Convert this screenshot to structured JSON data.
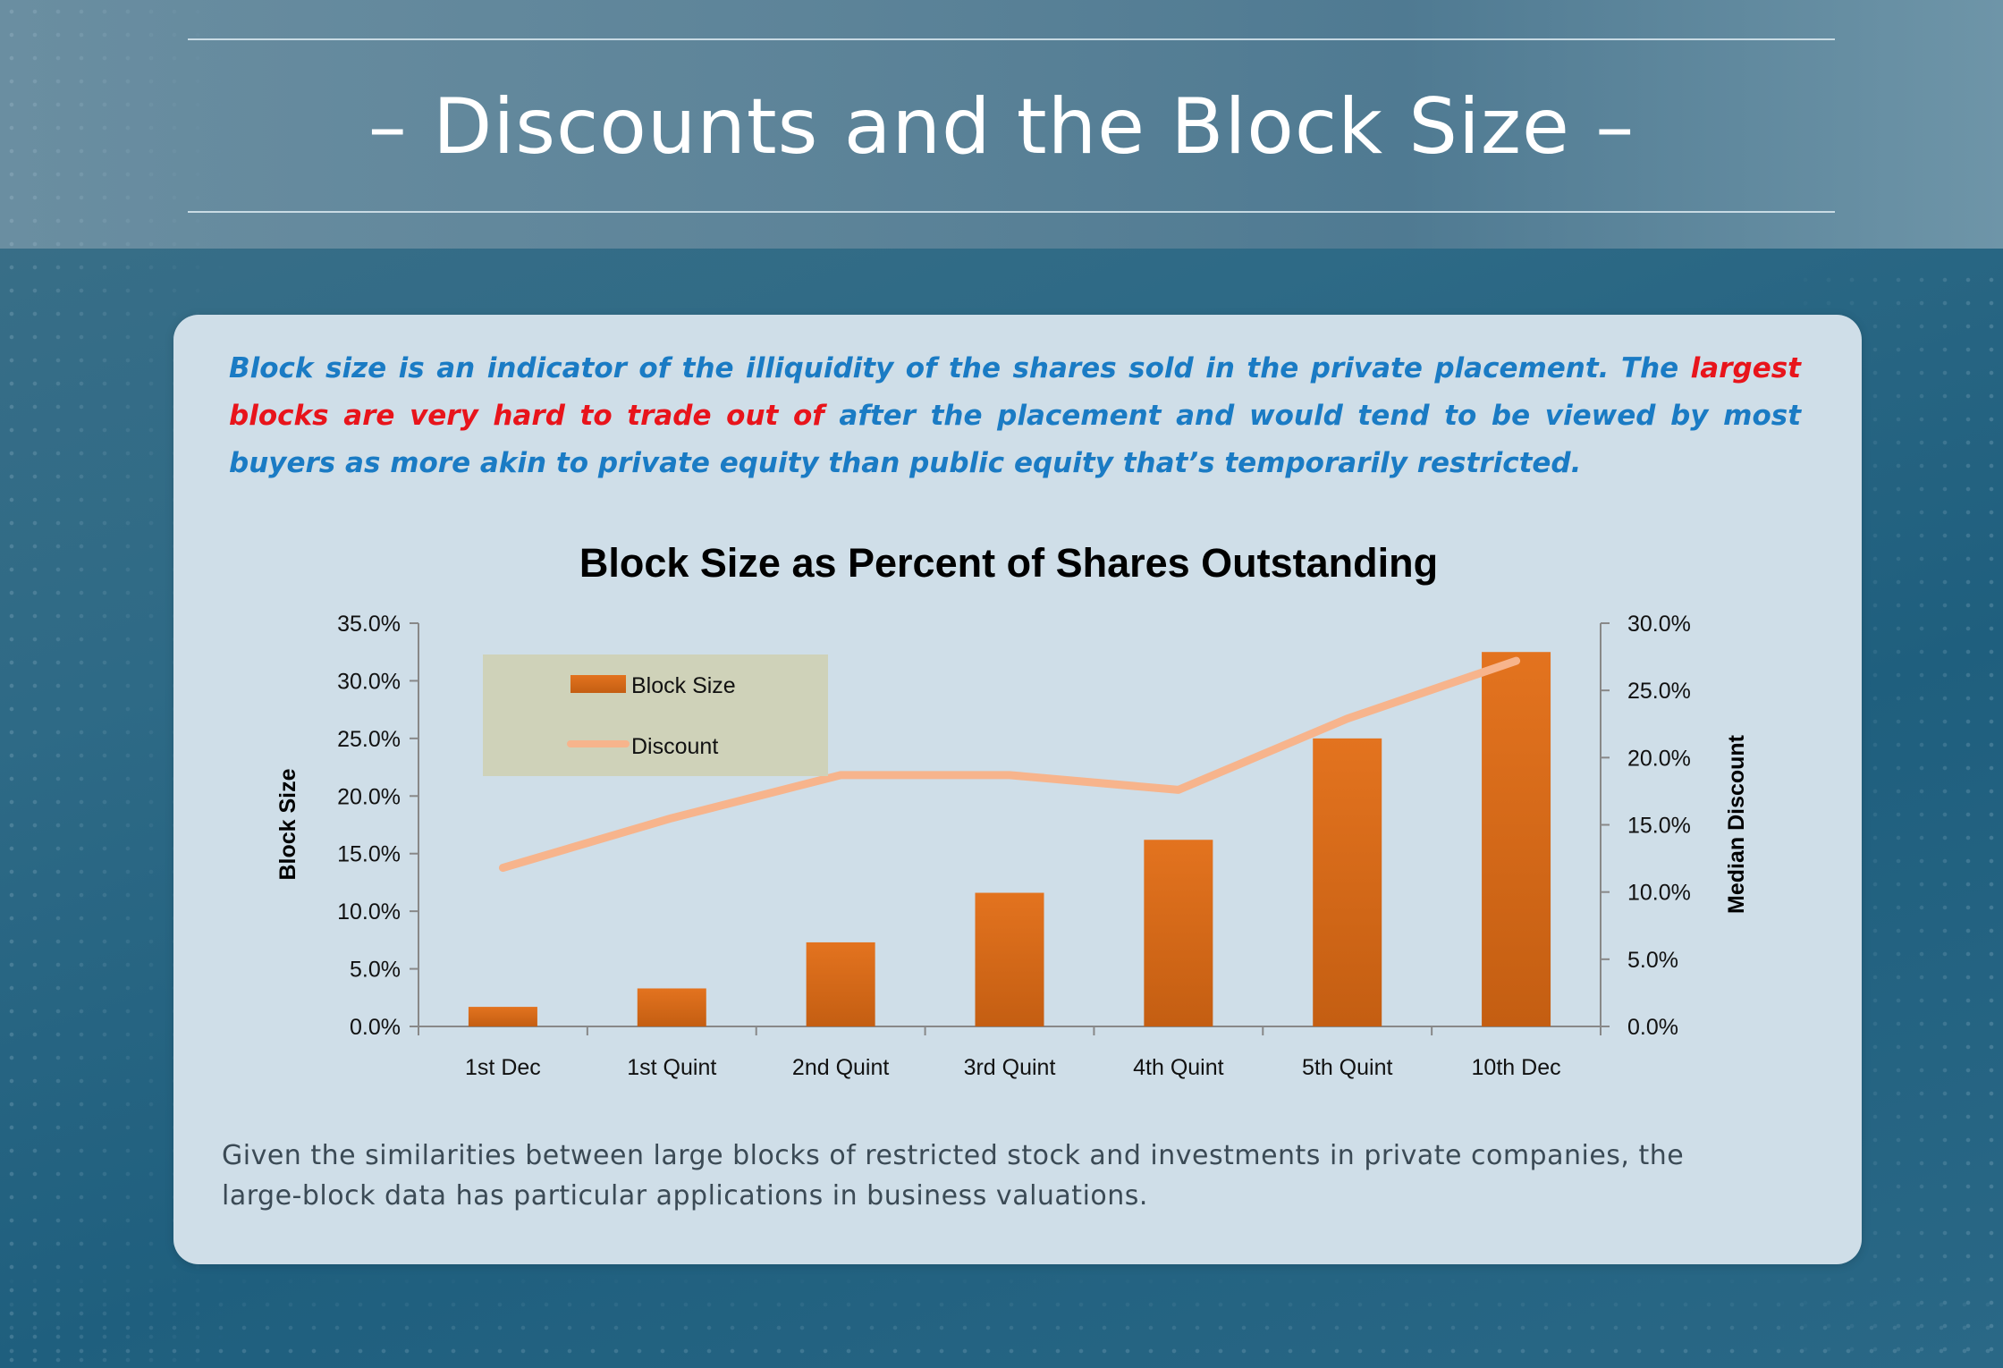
{
  "slide": {
    "title": "– Discounts and the Block Size –",
    "intro_part1": "Block size is an indicator of the illiquidity of the shares sold in the private placement. The ",
    "intro_highlight": "largest blocks are very hard to trade out of",
    "intro_part2": " after the placement and would tend to be viewed by most buyers as more akin to private equity than public equity that’s temporarily restricted.",
    "footer": "Given the similarities between large blocks of restricted stock and investments in private companies, the large-block data has particular applications in business valuations."
  },
  "colors": {
    "bar": "#e3731f",
    "bar_dark": "#c45e12",
    "line": "#f7b48c",
    "legend_bg": "#cfd2b9",
    "title_color": "#000000"
  },
  "chart_data": {
    "type": "bar",
    "title": "Block Size as Percent of Shares Outstanding",
    "categories": [
      "1st Dec",
      "1st Quint",
      "2nd Quint",
      "3rd Quint",
      "4th Quint",
      "5th Quint",
      "10th Dec"
    ],
    "series": [
      {
        "name": "Block Size",
        "type": "bar",
        "axis": "left",
        "values": [
          1.7,
          3.3,
          7.3,
          11.6,
          16.2,
          25.0,
          32.5
        ]
      },
      {
        "name": "Discount",
        "type": "line",
        "axis": "right",
        "values": [
          11.8,
          15.5,
          18.7,
          18.7,
          17.6,
          22.9,
          27.2
        ]
      }
    ],
    "ylabel": "Block Size",
    "y2label": "Median Discount",
    "ylim": [
      0,
      35
    ],
    "y2lim": [
      0,
      30
    ],
    "yticks": [
      "0.0%",
      "5.0%",
      "10.0%",
      "15.0%",
      "20.0%",
      "25.0%",
      "30.0%",
      "35.0%"
    ],
    "y2ticks": [
      "0.0%",
      "5.0%",
      "10.0%",
      "15.0%",
      "20.0%",
      "25.0%",
      "30.0%"
    ],
    "legend_position": "top-left",
    "grid": false
  }
}
